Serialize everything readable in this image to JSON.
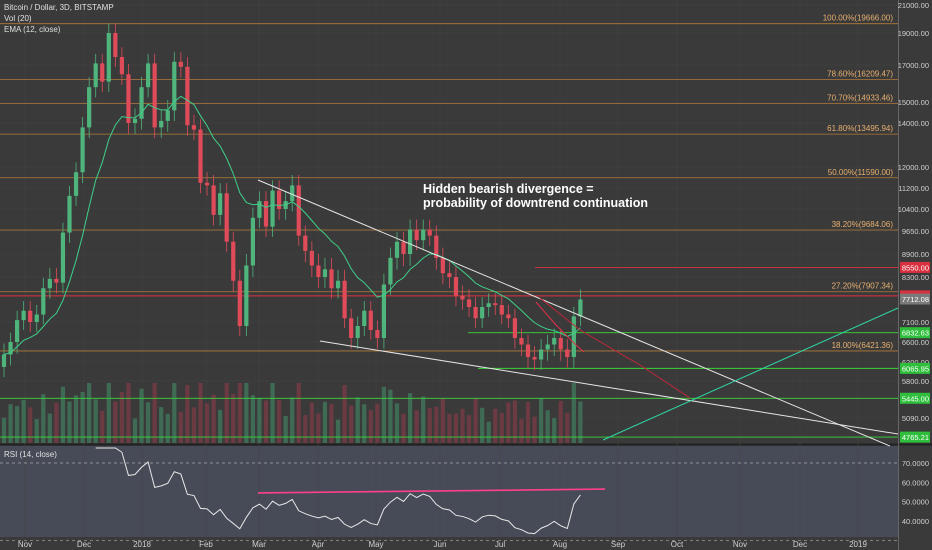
{
  "header": {
    "symbol": "Bitcoin / Dollar, 3D, BITSTAMP",
    "vol_label": "Vol (20)",
    "ema_label": "EMA (12, close)",
    "rsi_label": "RSI (14, close)"
  },
  "annotation": {
    "line1": "Hidden bearish divergence =",
    "line2": "probability of downtrend continuation"
  },
  "colors": {
    "background": "#3a3a3a",
    "up": "#4fb57c",
    "down": "#e04b5a",
    "fib": "#c8863a",
    "ema": "#3fd08a",
    "trend": "#e6e6e6",
    "green_level": "#39d639",
    "red_level": "#e03040",
    "rsi_line": "#e8e8e8",
    "rsi_divergence": "#ff3f88",
    "axis_text": "#d0d0d0"
  },
  "chart_data": {
    "type": "candlestick",
    "price_axis": {
      "range": [
        3700,
        21000
      ],
      "ticks": [
        "21000.00",
        "19000.00",
        "17000.00",
        "15000.00",
        "14000.00",
        "12000.00",
        "11200.00",
        "10400.00",
        "9650.00",
        "8900.00",
        "8300.00",
        "7100.00",
        "6600.00",
        "6200.00",
        "5800.00",
        "5450.00",
        "5090.00",
        "4750.00"
      ],
      "tick_values": [
        21000,
        19000,
        17000,
        15000,
        14000,
        12000,
        11200,
        10400,
        9650,
        8900,
        8300,
        7100,
        6600,
        6200,
        5800,
        5450,
        5090,
        4750
      ]
    },
    "time_axis": {
      "labels": [
        "Nov",
        "Dec",
        "2018",
        "Feb",
        "Mar",
        "Apr",
        "May",
        "Jun",
        "Jul",
        "Aug",
        "Sep",
        "Oct",
        "Nov",
        "Dec",
        "2019"
      ]
    },
    "fib_levels": [
      {
        "label": "100.00%(19666.00)",
        "value": 19666
      },
      {
        "label": "78.60%(16209.47)",
        "value": 16209.47
      },
      {
        "label": "70.70%(14933.46)",
        "value": 14933.46
      },
      {
        "label": "61.80%(13495.94)",
        "value": 13495.94
      },
      {
        "label": "50.00%(11590.00)",
        "value": 11590
      },
      {
        "label": "38.20%(9684.06)",
        "value": 9684.06
      },
      {
        "label": "27.20%(7907.34)",
        "value": 7907.34
      },
      {
        "label": "18.00%(6421.36)",
        "value": 6421.36
      }
    ],
    "price_tags": [
      {
        "label": "8550.00",
        "value": 8550,
        "color": "red"
      },
      {
        "label": "7796.78",
        "value": 7796.78,
        "color": "red"
      },
      {
        "label": "7712.08",
        "value": 7712.08,
        "color": "gray"
      },
      {
        "label": "6832.63",
        "value": 6832.63,
        "color": "green"
      },
      {
        "label": "6065.95",
        "value": 6065.95,
        "color": "green"
      },
      {
        "label": "5445.00",
        "value": 5445,
        "color": "green"
      },
      {
        "label": "4765.21",
        "value": 4765.21,
        "color": "green"
      }
    ],
    "series": [
      {
        "name": "BTCUSD 3D",
        "closes": [
          6350,
          6600,
          7150,
          7400,
          7100,
          7300,
          8000,
          8250,
          8150,
          9600,
          10900,
          11800,
          13800,
          15800,
          17100,
          16100,
          19000,
          17500,
          16500,
          14000,
          14200,
          15800,
          17100,
          13800,
          14100,
          14600,
          17200,
          16900,
          13900,
          13700,
          11400,
          11300,
          10200,
          11000,
          9300,
          8200,
          7000,
          8600,
          10100,
          10700,
          9800,
          11100,
          10400,
          10700,
          11300,
          9500,
          9000,
          8600,
          8300,
          8500,
          8000,
          8200,
          7200,
          6700,
          7000,
          7400,
          6900,
          6700,
          8100,
          8800,
          9300,
          8900,
          9700,
          9350,
          9700,
          9500,
          8800,
          8400,
          8300,
          7800,
          7700,
          7500,
          7200,
          7500,
          7600,
          7550,
          7300,
          7200,
          6700,
          6550,
          6300,
          6250,
          6450,
          6550,
          6700,
          6450,
          6300,
          7250,
          7700
        ]
      }
    ],
    "rsi_axis": {
      "ticks": [
        "70.0000",
        "60.0000",
        "50.0000",
        "40.0000"
      ],
      "tick_values": [
        70,
        60,
        50,
        40
      ],
      "range": [
        33,
        78
      ]
    }
  }
}
